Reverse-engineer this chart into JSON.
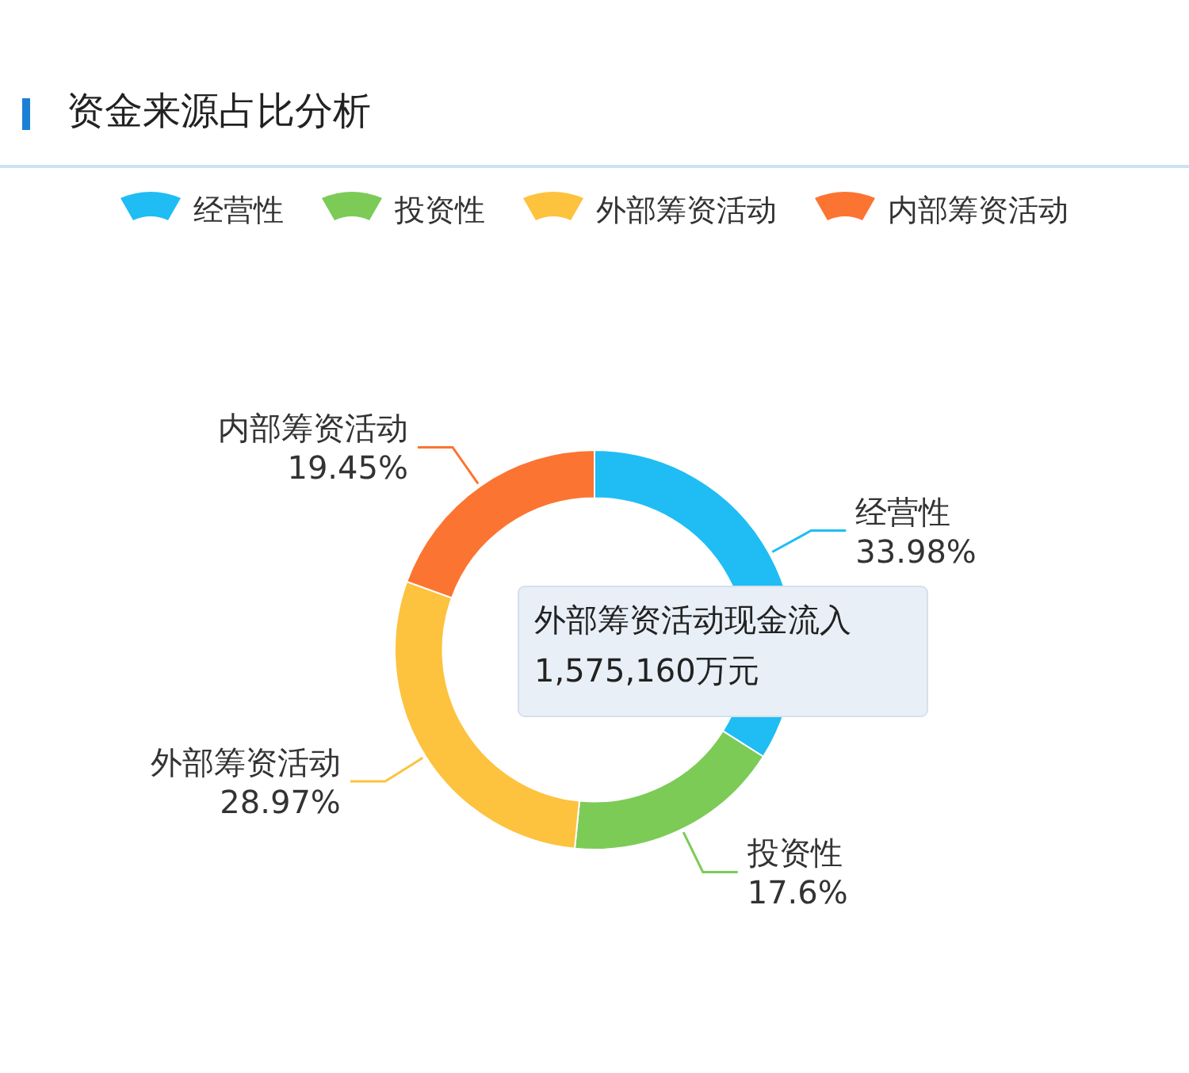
{
  "chart_data": {
    "type": "donut",
    "title": "资金来源占比分析",
    "categories": [
      "经营性",
      "投资性",
      "外部筹资活动",
      "内部筹资活动"
    ],
    "values": [
      33.98,
      17.6,
      28.97,
      19.45
    ],
    "colors": [
      "#1fbdf4",
      "#7ccb57",
      "#fdc23e",
      "#fc7431"
    ],
    "value_labels": [
      "33.98%",
      "17.6%",
      "28.97%",
      "19.45%"
    ],
    "legend": "top",
    "annotations": [
      "外部筹资活动现金流入",
      "1,575,160万元"
    ]
  }
}
